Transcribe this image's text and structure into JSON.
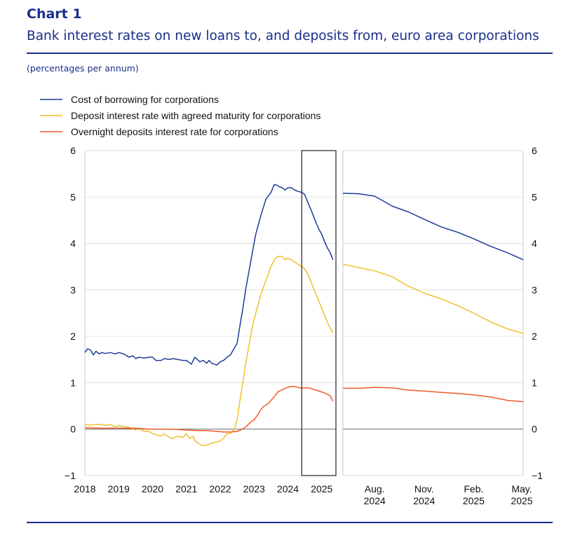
{
  "header": {
    "chart_label": "Chart 1",
    "title": "Bank interest rates on new loans to, and deposits from, euro area corporations",
    "units": "(percentages per annum)"
  },
  "colors": {
    "blue": "#1f3d99",
    "yellow": "#f2bf2a",
    "orange": "#f05a28",
    "text": "#1a2e8a"
  },
  "chart_data": [
    {
      "type": "line",
      "panel": "left",
      "x_ticks": [
        "2018",
        "2019",
        "2020",
        "2021",
        "2022",
        "2023",
        "2024",
        "2025"
      ],
      "xlim": [
        2018,
        2025.42
      ],
      "ylim": [
        -1,
        6
      ],
      "y_ticks": [
        -1,
        0,
        1,
        2,
        3,
        4,
        5,
        6
      ],
      "y_tick_labels": [
        "−1",
        "0",
        "1",
        "2",
        "3",
        "4",
        "5",
        "6"
      ],
      "highlight_box": [
        2024.42,
        2025.33
      ],
      "series": [
        {
          "name": "Cost of borrowing for corporations",
          "color": "#1f3d99",
          "x": [
            2018.0,
            2018.08,
            2018.17,
            2018.25,
            2018.33,
            2018.42,
            2018.5,
            2018.6,
            2018.75,
            2018.9,
            2019.0,
            2019.15,
            2019.3,
            2019.42,
            2019.5,
            2019.6,
            2019.75,
            2019.9,
            2020.0,
            2020.1,
            2020.25,
            2020.35,
            2020.5,
            2020.6,
            2020.75,
            2020.9,
            2021.0,
            2021.15,
            2021.25,
            2021.4,
            2021.5,
            2021.6,
            2021.67,
            2021.75,
            2021.9,
            2022.0,
            2022.1,
            2022.2,
            2022.3,
            2022.42,
            2022.5,
            2022.6,
            2022.67,
            2022.75,
            2022.85,
            2022.95,
            2023.05,
            2023.2,
            2023.35,
            2023.5,
            2023.6,
            2023.7,
            2023.75,
            2023.83,
            2023.92,
            2024.0,
            2024.1,
            2024.2,
            2024.3,
            2024.42,
            2024.5,
            2024.58,
            2024.67,
            2024.75,
            2024.83,
            2024.92,
            2025.0,
            2025.08,
            2025.17,
            2025.25,
            2025.33
          ],
          "y": [
            1.65,
            1.73,
            1.7,
            1.6,
            1.68,
            1.62,
            1.65,
            1.63,
            1.65,
            1.62,
            1.65,
            1.62,
            1.55,
            1.58,
            1.52,
            1.55,
            1.53,
            1.55,
            1.55,
            1.48,
            1.48,
            1.52,
            1.5,
            1.52,
            1.5,
            1.48,
            1.48,
            1.4,
            1.55,
            1.45,
            1.48,
            1.42,
            1.48,
            1.42,
            1.38,
            1.45,
            1.48,
            1.55,
            1.6,
            1.75,
            1.85,
            2.3,
            2.6,
            3.0,
            3.4,
            3.8,
            4.2,
            4.6,
            4.95,
            5.1,
            5.27,
            5.25,
            5.22,
            5.2,
            5.15,
            5.2,
            5.2,
            5.15,
            5.12,
            5.1,
            5.05,
            4.9,
            4.75,
            4.6,
            4.45,
            4.3,
            4.2,
            4.05,
            3.9,
            3.8,
            3.65
          ]
        },
        {
          "name": "Deposit interest rate with agreed maturity for corporations",
          "color": "#f2bf2a",
          "x": [
            2018.0,
            2018.08,
            2018.17,
            2018.25,
            2018.33,
            2018.42,
            2018.5,
            2018.6,
            2018.75,
            2018.9,
            2019.0,
            2019.1,
            2019.2,
            2019.3,
            2019.42,
            2019.5,
            2019.6,
            2019.75,
            2019.9,
            2020.0,
            2020.1,
            2020.25,
            2020.35,
            2020.5,
            2020.6,
            2020.75,
            2020.9,
            2021.0,
            2021.1,
            2021.2,
            2021.25,
            2021.35,
            2021.45,
            2021.55,
            2021.67,
            2021.75,
            2021.9,
            2022.0,
            2022.1,
            2022.2,
            2022.3,
            2022.42,
            2022.5,
            2022.58,
            2022.67,
            2022.75,
            2022.85,
            2022.95,
            2023.05,
            2023.2,
            2023.35,
            2023.5,
            2023.6,
            2023.7,
            2023.83,
            2023.92,
            2024.0,
            2024.1,
            2024.2,
            2024.3,
            2024.42,
            2024.5,
            2024.58,
            2024.67,
            2024.75,
            2024.83,
            2024.92,
            2025.0,
            2025.08,
            2025.17,
            2025.25,
            2025.33
          ],
          "y": [
            0.08,
            0.1,
            0.08,
            0.1,
            0.1,
            0.1,
            0.1,
            0.08,
            0.1,
            0.05,
            0.08,
            0.06,
            0.05,
            0.04,
            0.0,
            -0.02,
            0.02,
            -0.05,
            -0.05,
            -0.1,
            -0.12,
            -0.15,
            -0.1,
            -0.18,
            -0.2,
            -0.15,
            -0.18,
            -0.1,
            -0.2,
            -0.15,
            -0.25,
            -0.3,
            -0.35,
            -0.35,
            -0.33,
            -0.3,
            -0.28,
            -0.25,
            -0.2,
            -0.1,
            -0.1,
            0.0,
            0.2,
            0.6,
            1.0,
            1.4,
            1.8,
            2.2,
            2.5,
            2.9,
            3.2,
            3.5,
            3.65,
            3.72,
            3.72,
            3.65,
            3.68,
            3.65,
            3.6,
            3.55,
            3.5,
            3.45,
            3.35,
            3.2,
            3.05,
            2.9,
            2.75,
            2.6,
            2.45,
            2.3,
            2.18,
            2.07
          ]
        },
        {
          "name": "Overnight deposits interest rate for corporations",
          "color": "#f05a28",
          "x": [
            2018.0,
            2018.5,
            2019.0,
            2019.5,
            2019.9,
            2020.2,
            2020.6,
            2021.0,
            2021.3,
            2021.6,
            2021.9,
            2022.1,
            2022.3,
            2022.5,
            2022.6,
            2022.7,
            2022.8,
            2022.9,
            2023.0,
            2023.1,
            2023.2,
            2023.3,
            2023.42,
            2023.5,
            2023.6,
            2023.7,
            2023.83,
            2023.92,
            2024.0,
            2024.1,
            2024.2,
            2024.3,
            2024.42,
            2024.5,
            2024.58,
            2024.67,
            2024.75,
            2024.83,
            2024.92,
            2025.0,
            2025.08,
            2025.17,
            2025.25,
            2025.33
          ],
          "y": [
            0.03,
            0.02,
            0.02,
            0.02,
            0.0,
            0.0,
            0.0,
            -0.02,
            -0.03,
            -0.03,
            -0.05,
            -0.06,
            -0.06,
            -0.05,
            -0.02,
            0.02,
            0.08,
            0.15,
            0.2,
            0.3,
            0.42,
            0.5,
            0.55,
            0.62,
            0.7,
            0.8,
            0.85,
            0.88,
            0.9,
            0.92,
            0.92,
            0.9,
            0.88,
            0.89,
            0.89,
            0.88,
            0.86,
            0.84,
            0.82,
            0.8,
            0.78,
            0.75,
            0.72,
            0.6
          ]
        }
      ]
    },
    {
      "type": "line",
      "panel": "right",
      "x_ticks": [
        "Aug.\n2024",
        "Nov.\n2024",
        "Feb.\n2025",
        "May.\n2025"
      ],
      "x_tick_lines": [
        [
          "Aug.",
          "2024"
        ],
        [
          "Nov.",
          "2024"
        ],
        [
          "Feb.",
          "2025"
        ],
        [
          "May.",
          "2025"
        ]
      ],
      "xlim": [
        2024.42,
        2025.33
      ],
      "ylim": [
        -1,
        6
      ],
      "y_ticks": [
        -1,
        0,
        1,
        2,
        3,
        4,
        5,
        6
      ],
      "y_tick_labels": [
        "−1",
        "0",
        "1",
        "2",
        "3",
        "4",
        "5",
        "6"
      ],
      "series": [
        {
          "name": "Cost of borrowing for corporations",
          "color": "#1f3d99",
          "x": [
            2024.42,
            2024.5,
            2024.58,
            2024.67,
            2024.75,
            2024.83,
            2024.92,
            2025.0,
            2025.08,
            2025.17,
            2025.25,
            2025.33
          ],
          "y": [
            5.08,
            5.07,
            5.02,
            4.8,
            4.68,
            4.52,
            4.35,
            4.24,
            4.1,
            3.93,
            3.8,
            3.65
          ]
        },
        {
          "name": "Deposit interest rate with agreed maturity for corporations",
          "color": "#f2bf2a",
          "x": [
            2024.42,
            2024.5,
            2024.58,
            2024.67,
            2024.75,
            2024.83,
            2024.92,
            2025.0,
            2025.08,
            2025.17,
            2025.25,
            2025.33
          ],
          "y": [
            3.55,
            3.48,
            3.41,
            3.28,
            3.08,
            2.93,
            2.8,
            2.66,
            2.5,
            2.3,
            2.16,
            2.06
          ]
        },
        {
          "name": "Overnight deposits interest rate for corporations",
          "color": "#f05a28",
          "x": [
            2024.42,
            2024.5,
            2024.58,
            2024.67,
            2024.75,
            2024.83,
            2024.92,
            2025.0,
            2025.08,
            2025.17,
            2025.25,
            2025.33
          ],
          "y": [
            0.88,
            0.88,
            0.9,
            0.89,
            0.84,
            0.82,
            0.79,
            0.77,
            0.74,
            0.69,
            0.62,
            0.59
          ]
        }
      ]
    }
  ]
}
